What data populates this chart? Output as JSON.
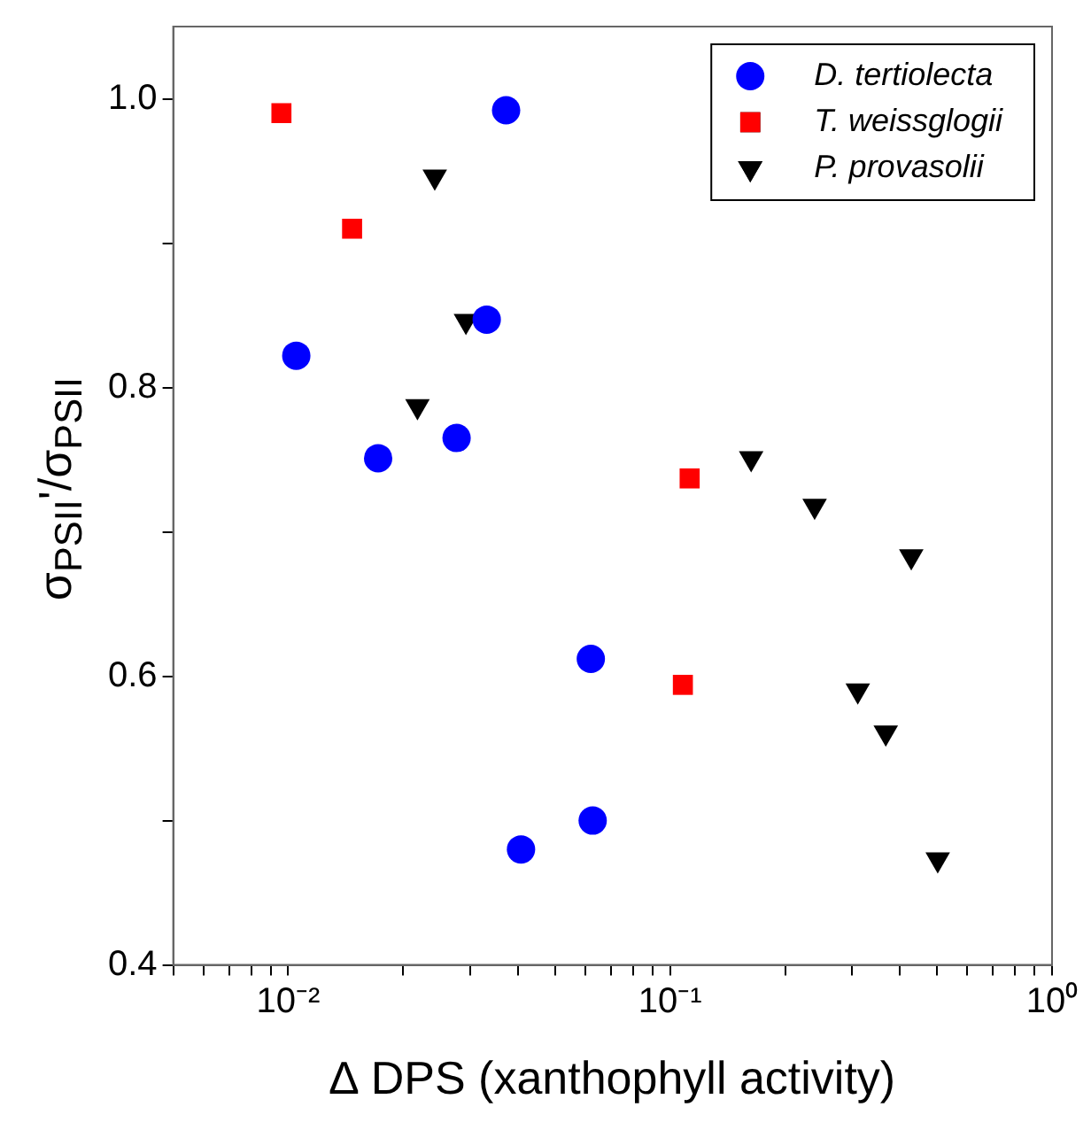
{
  "chart_data": {
    "type": "scatter",
    "xlabel": "∆ DPS (xanthophyll activity)",
    "ylabel": "σ$_{PSII}$'/σ$_{PSII}$",
    "log": "x",
    "grid": false,
    "legend": "top right",
    "xlim": [
      0.005,
      1
    ],
    "ylim": [
      0.4,
      1.05
    ],
    "xticks": [
      {
        "value": 0.005,
        "label": null
      },
      {
        "value": 0.006,
        "label": null
      },
      {
        "value": 0.007,
        "label": null
      },
      {
        "value": 0.008,
        "label": null
      },
      {
        "value": 0.009,
        "label": null
      },
      {
        "value": 0.01,
        "label": "10⁻²"
      },
      {
        "value": 0.02,
        "label": null
      },
      {
        "value": 0.03,
        "label": null
      },
      {
        "value": 0.04,
        "label": null
      },
      {
        "value": 0.05,
        "label": null
      },
      {
        "value": 0.06,
        "label": null
      },
      {
        "value": 0.07,
        "label": null
      },
      {
        "value": 0.08,
        "label": null
      },
      {
        "value": 0.09,
        "label": null
      },
      {
        "value": 0.1,
        "label": "10⁻¹"
      },
      {
        "value": 0.2,
        "label": null
      },
      {
        "value": 0.3,
        "label": null
      },
      {
        "value": 0.4,
        "label": null
      },
      {
        "value": 0.5,
        "label": null
      },
      {
        "value": 0.6,
        "label": null
      },
      {
        "value": 0.7,
        "label": null
      },
      {
        "value": 0.8,
        "label": null
      },
      {
        "value": 0.9,
        "label": null
      },
      {
        "value": 1,
        "label": "10⁰"
      }
    ],
    "yticks": [
      0.4,
      {
        "value": 0.5,
        "label": null
      },
      0.6,
      {
        "value": 0.7,
        "label": null
      },
      0.8,
      {
        "value": 0.9,
        "label": null
      },
      {
        "value": 1,
        "label": "1.0"
      }
    ],
    "series": [
      {
        "name": "D. tertiolecta",
        "color": "#0000ff",
        "marker": "circle",
        "x": [
          0.0372,
          0.0331,
          0.0105,
          0.0172,
          0.0276,
          0.062,
          0.0627,
          0.0407
        ],
        "values": [
          0.992,
          0.847,
          0.822,
          0.751,
          0.765,
          0.612,
          0.5,
          0.48
        ]
      },
      {
        "name": "T. weissglogii",
        "color": "#ff0000",
        "marker": "square",
        "x": [
          0.0096,
          0.0147,
          0.1125,
          0.108
        ],
        "values": [
          0.99,
          0.91,
          0.737,
          0.594
        ]
      },
      {
        "name": "P. provasolii",
        "color": "#000000",
        "marker": "triangle",
        "x": [
          0.0242,
          0.0292,
          0.0218,
          0.163,
          0.239,
          0.428,
          0.31,
          0.367,
          0.502
        ],
        "values": [
          0.946,
          0.846,
          0.787,
          0.751,
          0.718,
          0.683,
          0.59,
          0.561,
          0.473
        ]
      }
    ]
  }
}
